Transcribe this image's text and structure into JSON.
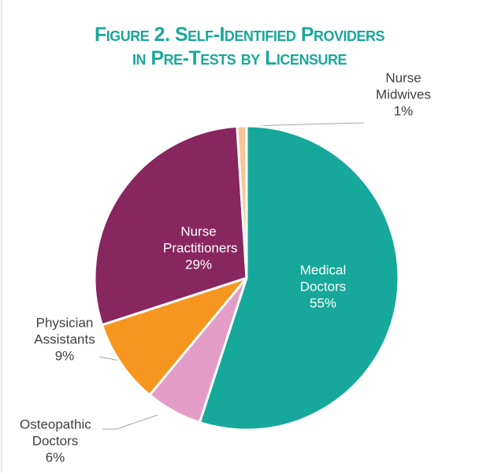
{
  "chart_data": {
    "type": "pie",
    "title": [
      "Figure 2. Self-Identified Providers",
      "in Pre-Tests by Licensure"
    ],
    "categories": [
      "Medical Doctors",
      "Osteopathic Doctors",
      "Physician Assistants",
      "Nurse Practitioners",
      "Nurse Midwives"
    ],
    "values": [
      55,
      6,
      9,
      29,
      1
    ],
    "value_labels": [
      "55%",
      "6%",
      "9%",
      "29%",
      "1%"
    ],
    "colors": [
      "#16a89b",
      "#e39dc6",
      "#f7961f",
      "#882660",
      "#f4c799"
    ]
  }
}
